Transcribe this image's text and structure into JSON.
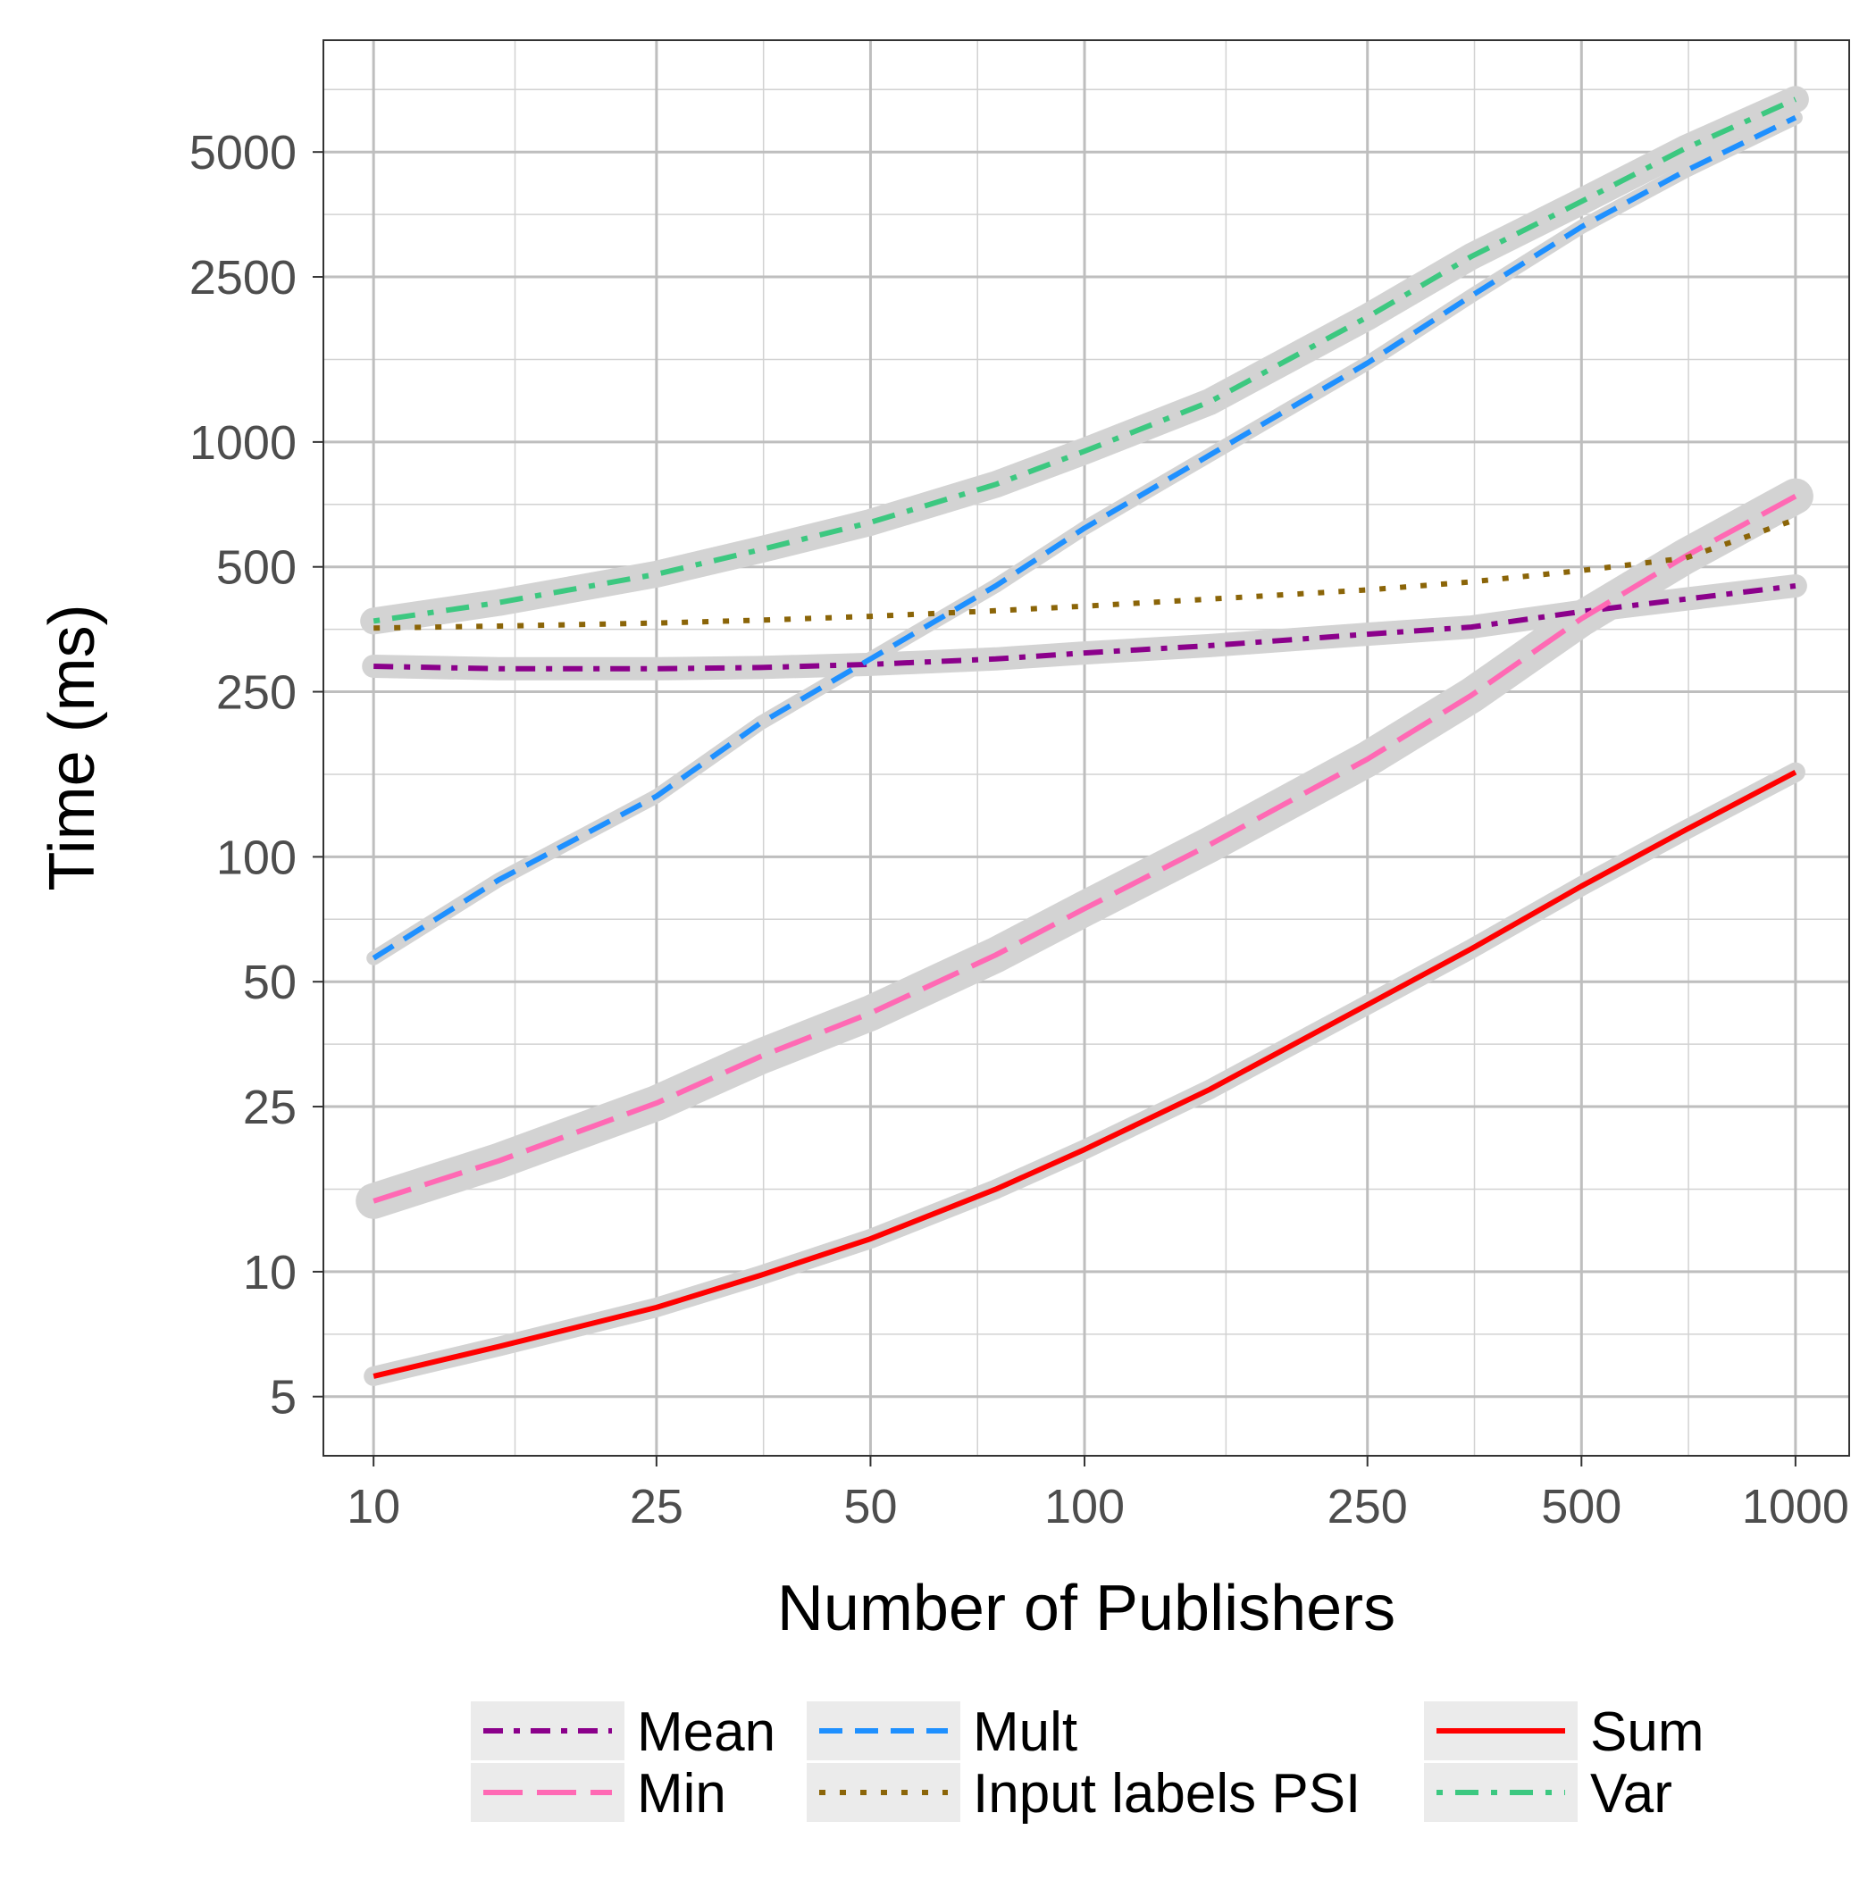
{
  "chart_data": {
    "type": "line",
    "xlabel": "Number of Publishers",
    "ylabel": "Time (ms)",
    "x_scale": "log10",
    "y_scale": "log10",
    "xlim": [
      8.5,
      1190
    ],
    "ylim": [
      3.6,
      9300
    ],
    "x_ticks": [
      10,
      25,
      50,
      100,
      250,
      500,
      1000
    ],
    "x_tick_labels": [
      "10",
      "25",
      "50",
      "100",
      "250",
      "500",
      "1000"
    ],
    "y_ticks": [
      5,
      10,
      25,
      50,
      100,
      250,
      500,
      1000,
      2500,
      5000
    ],
    "y_tick_labels": [
      "5",
      "10",
      "25",
      "50",
      "100",
      "250",
      "500",
      "1000",
      "2500",
      "5000"
    ],
    "grid": true,
    "confidence_band": true,
    "legend_position": "bottom",
    "series": [
      {
        "name": "Mean",
        "color": "#8B008B",
        "dash": "dashdot",
        "band": 9,
        "x": [
          10,
          15,
          25,
          35,
          50,
          75,
          100,
          150,
          250,
          350,
          500,
          700,
          1000
        ],
        "y": [
          288,
          284,
          284,
          286,
          291,
          300,
          310,
          323,
          344,
          358,
          390,
          418,
          450
        ]
      },
      {
        "name": "Min",
        "color": "#FF69B4",
        "dash": "longdash",
        "band": 16,
        "x": [
          10,
          15,
          25,
          35,
          50,
          75,
          100,
          150,
          250,
          350,
          500,
          700,
          1000
        ],
        "y": [
          14.8,
          18.5,
          25.5,
          33,
          42,
          58,
          75,
          107,
          172,
          245,
          375,
          530,
          740
        ]
      },
      {
        "name": "Mult",
        "color": "#1E90FF",
        "dash": "dashed",
        "band": 4,
        "x": [
          10,
          15,
          25,
          35,
          50,
          75,
          100,
          150,
          250,
          350,
          500,
          700,
          1000
        ],
        "y": [
          57,
          88,
          140,
          210,
          300,
          450,
          620,
          930,
          1550,
          2250,
          3300,
          4500,
          6050
        ]
      },
      {
        "name": "Input labels PSI",
        "color": "#8B6508",
        "dash": "dotted",
        "band": 0,
        "x": [
          10,
          15,
          25,
          35,
          50,
          75,
          100,
          150,
          250,
          350,
          500,
          700,
          1000
        ],
        "y": [
          356,
          360,
          366,
          372,
          380,
          392,
          402,
          418,
          440,
          460,
          490,
          525,
          650
        ]
      },
      {
        "name": "Sum",
        "color": "#FF0000",
        "dash": "solid",
        "band": 7,
        "x": [
          10,
          15,
          25,
          35,
          50,
          75,
          100,
          150,
          250,
          350,
          500,
          700,
          1000
        ],
        "y": [
          5.6,
          6.6,
          8.2,
          9.8,
          12,
          15.8,
          19.7,
          27.5,
          44,
          60,
          85,
          116,
          160
        ]
      },
      {
        "name": "Var",
        "color": "#3CC880",
        "dash": "dotdash",
        "band": 11,
        "x": [
          10,
          15,
          25,
          35,
          50,
          75,
          100,
          150,
          250,
          350,
          500,
          700,
          1000
        ],
        "y": [
          370,
          410,
          480,
          550,
          640,
          790,
          950,
          1250,
          2000,
          2800,
          3800,
          5100,
          6700
        ]
      }
    ],
    "legend_columns": [
      [
        "Mean",
        "Min"
      ],
      [
        "Mult",
        "Input labels PSI"
      ],
      [
        "Sum",
        "Var"
      ]
    ]
  }
}
